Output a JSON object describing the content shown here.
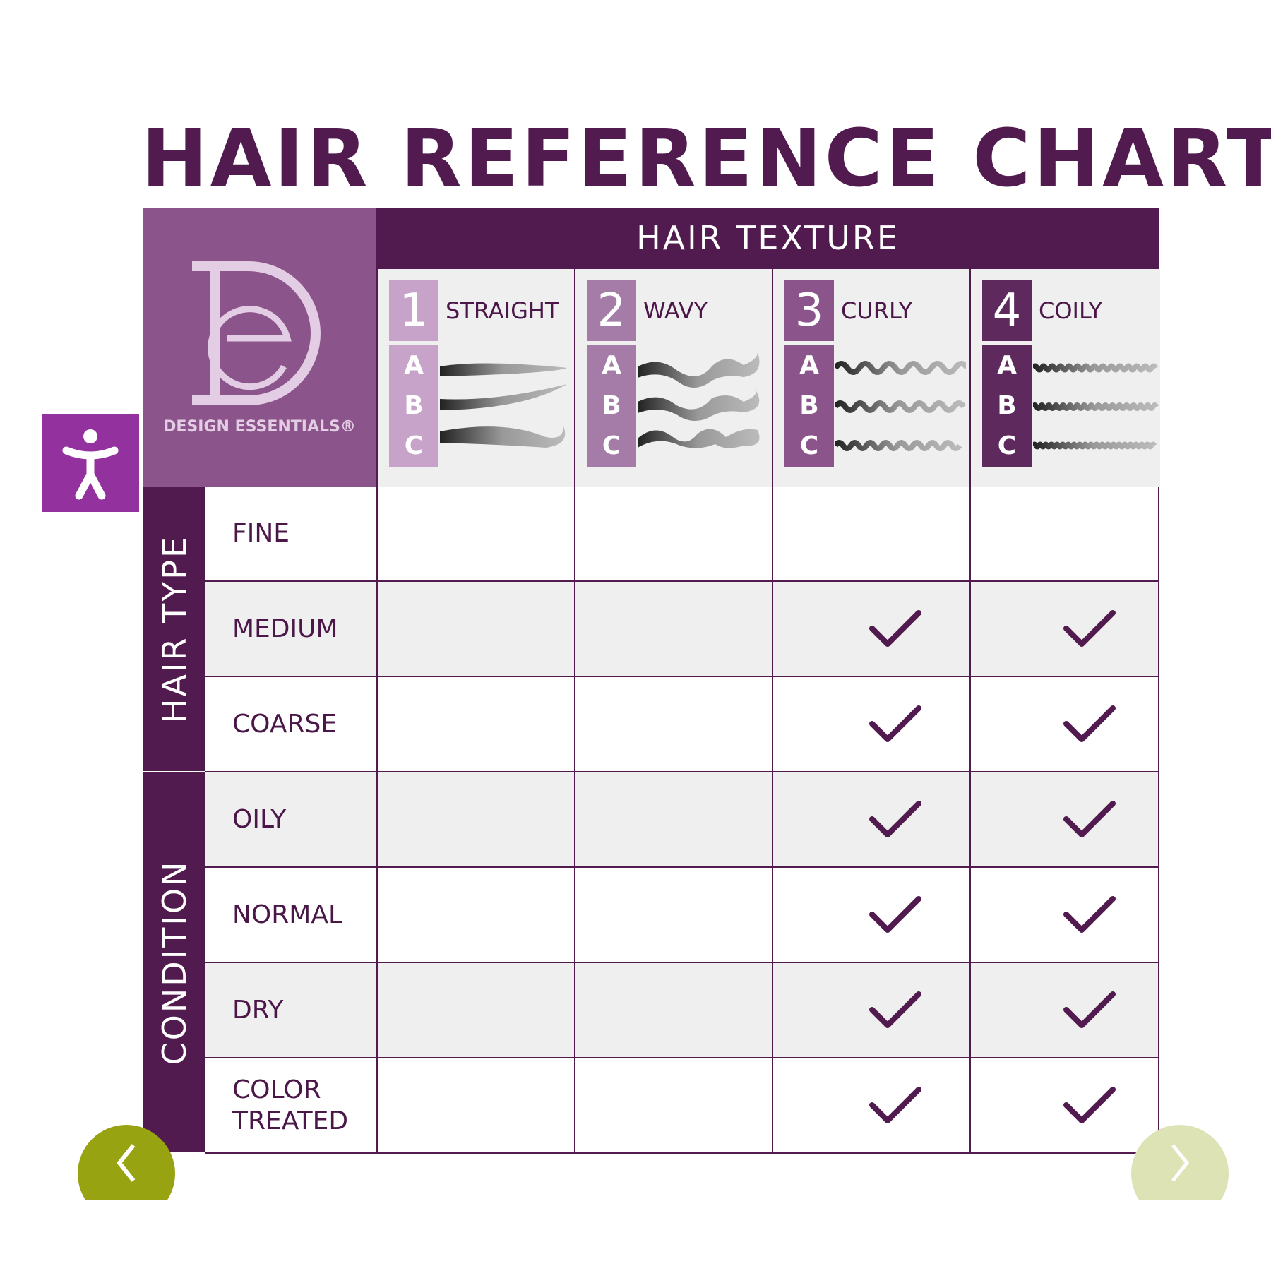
{
  "title": "HAIR REFERENCE CHART",
  "logo": {
    "brand": "DESIGN ESSENTIALS®",
    "monogram": "DE"
  },
  "texture_header": "HAIR TEXTURE",
  "textures": [
    {
      "number": "1",
      "name": "STRAIGHT",
      "color": "#c7a2c9",
      "subtypes": [
        "A",
        "B",
        "C"
      ]
    },
    {
      "number": "2",
      "name": "WAVY",
      "color": "#a57ba8",
      "subtypes": [
        "A",
        "B",
        "C"
      ]
    },
    {
      "number": "3",
      "name": "CURLY",
      "color": "#8b548a",
      "subtypes": [
        "A",
        "B",
        "C"
      ]
    },
    {
      "number": "4",
      "name": "COILY",
      "color": "#5e2a5e",
      "subtypes": [
        "A",
        "B",
        "C"
      ]
    }
  ],
  "groups": [
    {
      "label": "HAIR TYPE",
      "rows": 3
    },
    {
      "label": "CONDITION",
      "rows": 4
    }
  ],
  "rows": [
    {
      "label": "FINE",
      "checks": [
        false,
        false,
        false,
        false
      ]
    },
    {
      "label": "MEDIUM",
      "checks": [
        false,
        false,
        true,
        true
      ]
    },
    {
      "label": "COARSE",
      "checks": [
        false,
        false,
        true,
        true
      ]
    },
    {
      "label": "OILY",
      "checks": [
        false,
        false,
        true,
        true
      ]
    },
    {
      "label": "NORMAL",
      "checks": [
        false,
        false,
        true,
        true
      ]
    },
    {
      "label": "DRY",
      "checks": [
        false,
        false,
        true,
        true
      ]
    },
    {
      "label": "COLOR\nTREATED",
      "checks": [
        false,
        false,
        true,
        true
      ]
    }
  ],
  "colors": {
    "primary": "#521b4f",
    "accessibility": "#93329e",
    "nav_prev": "#98a312",
    "nav_next": "#dde3b5"
  },
  "icons": {
    "accessibility": "accessibility-person-icon",
    "prev": "chevron-left-icon",
    "next": "chevron-right-icon",
    "check": "check-icon"
  }
}
